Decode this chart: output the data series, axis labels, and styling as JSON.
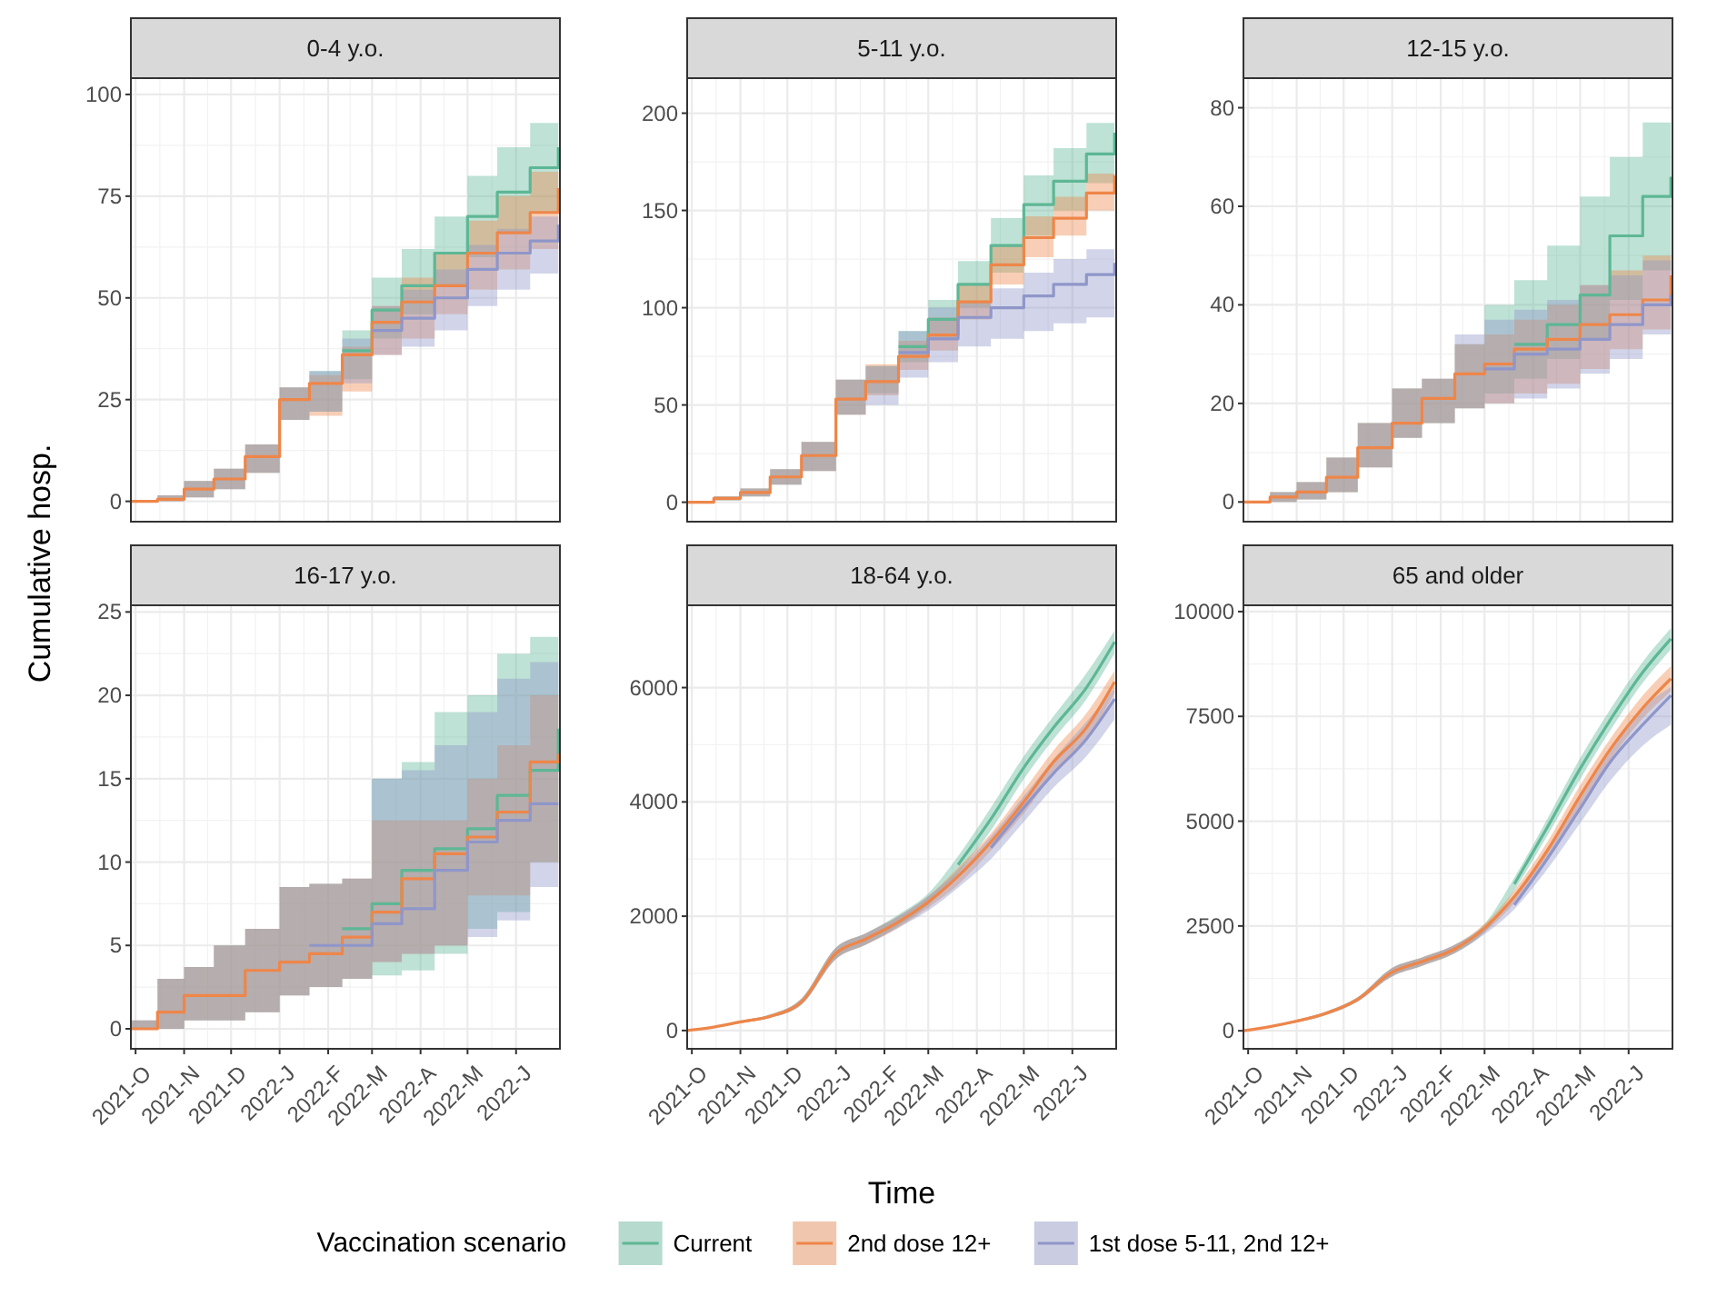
{
  "chart_data": [
    {
      "type": "step",
      "title": "0-4 y.o.",
      "ylabel": "Cumulative hosp.",
      "x": [
        "2021-09-28",
        "2021-10-15",
        "2021-11-01",
        "2021-11-20",
        "2021-12-10",
        "2022-01-01",
        "2022-01-20",
        "2022-02-10",
        "2022-03-01",
        "2022-03-20",
        "2022-04-10",
        "2022-05-01",
        "2022-05-20",
        "2022-06-10",
        "2022-06-28"
      ],
      "xlim": [
        "2021-09-28",
        "2022-06-29"
      ],
      "xticks": [
        {
          "value": "2021-10-01",
          "label": null
        },
        {
          "value": "2021-11-01",
          "label": null
        },
        {
          "value": "2021-12-01",
          "label": null
        },
        {
          "value": "2022-01-01",
          "label": null
        },
        {
          "value": "2022-02-01",
          "label": null
        },
        {
          "value": "2022-03-01",
          "label": null
        },
        {
          "value": "2022-04-01",
          "label": null
        },
        {
          "value": "2022-05-01",
          "label": null
        },
        {
          "value": "2022-06-01",
          "label": null
        }
      ],
      "tick_labels": "y",
      "ylim": [
        -5,
        104
      ],
      "yticks": [
        0,
        25,
        50,
        75,
        100
      ],
      "grid": true,
      "series": [
        {
          "color": "#5db795",
          "values": [
            null,
            null,
            null,
            null,
            null,
            null,
            null,
            37,
            47,
            53,
            61,
            70,
            76,
            82,
            87
          ],
          "lower": [
            0,
            0,
            1,
            3,
            7,
            20,
            22,
            30,
            40,
            46,
            53,
            60,
            66,
            71,
            76
          ],
          "upper": [
            0,
            1.5,
            5,
            8,
            14,
            28,
            32,
            42,
            55,
            62,
            70,
            80,
            87,
            93,
            98
          ]
        },
        {
          "color": "#ee8649",
          "values": [
            0,
            0.5,
            3,
            5.5,
            11,
            25,
            29,
            36,
            44,
            49,
            53,
            61,
            66,
            71,
            77
          ],
          "lower": [
            0,
            0,
            1,
            3,
            7,
            20,
            21,
            27,
            36,
            40,
            46,
            52,
            57,
            62,
            66
          ],
          "upper": [
            0,
            1.5,
            5,
            8,
            14,
            28,
            31,
            38,
            48,
            55,
            61,
            69,
            75,
            81,
            89
          ]
        },
        {
          "color": "#8f96c9",
          "values": [
            null,
            null,
            null,
            null,
            null,
            null,
            null,
            null,
            42,
            45,
            50,
            57,
            61,
            64,
            68
          ],
          "lower": [
            0,
            0,
            1,
            3,
            7,
            20,
            22,
            29,
            36,
            38,
            42,
            48,
            52,
            56,
            60
          ],
          "upper": [
            0,
            1.5,
            5,
            8,
            14,
            28,
            32,
            40,
            48,
            52,
            57,
            63,
            67,
            70,
            72
          ]
        }
      ]
    },
    {
      "type": "step",
      "title": "5-11 y.o.",
      "x": [
        "2021-09-28",
        "2021-10-15",
        "2021-11-01",
        "2021-11-20",
        "2021-12-10",
        "2022-01-01",
        "2022-01-20",
        "2022-02-10",
        "2022-03-01",
        "2022-03-20",
        "2022-04-10",
        "2022-05-01",
        "2022-05-20",
        "2022-06-10",
        "2022-06-28"
      ],
      "xlim": [
        "2021-09-28",
        "2022-06-29"
      ],
      "xticks": [
        {
          "value": "2021-10-01",
          "label": null
        },
        {
          "value": "2021-11-01",
          "label": null
        },
        {
          "value": "2021-12-01",
          "label": null
        },
        {
          "value": "2022-01-01",
          "label": null
        },
        {
          "value": "2022-02-01",
          "label": null
        },
        {
          "value": "2022-03-01",
          "label": null
        },
        {
          "value": "2022-04-01",
          "label": null
        },
        {
          "value": "2022-05-01",
          "label": null
        },
        {
          "value": "2022-06-01",
          "label": null
        }
      ],
      "tick_labels": "y",
      "ylim": [
        -10,
        218
      ],
      "yticks": [
        0,
        50,
        100,
        150,
        200
      ],
      "grid": true,
      "series": [
        {
          "color": "#5db795",
          "values": [
            null,
            null,
            null,
            null,
            null,
            null,
            null,
            80,
            94,
            112,
            132,
            153,
            165,
            179,
            190
          ],
          "lower": [
            0,
            1,
            3,
            9,
            16,
            45,
            56,
            72,
            84,
            100,
            118,
            137,
            150,
            164,
            176
          ],
          "upper": [
            0,
            3,
            7,
            17,
            31,
            63,
            70,
            88,
            104,
            124,
            146,
            168,
            182,
            195,
            206
          ]
        },
        {
          "color": "#ee8649",
          "values": [
            0,
            2,
            5,
            13,
            24,
            53,
            62,
            75,
            86,
            103,
            122,
            136,
            146,
            159,
            168
          ],
          "lower": [
            0,
            1,
            3,
            9,
            16,
            45,
            55,
            68,
            78,
            94,
            112,
            126,
            137,
            150,
            157
          ],
          "upper": [
            0,
            3,
            7,
            17,
            31,
            63,
            71,
            83,
            95,
            112,
            132,
            147,
            157,
            169,
            178
          ]
        },
        {
          "color": "#8f96c9",
          "values": [
            null,
            null,
            null,
            null,
            null,
            null,
            null,
            77,
            84,
            95,
            100,
            106,
            112,
            117,
            123
          ],
          "lower": [
            0,
            1,
            3,
            9,
            16,
            45,
            50,
            64,
            72,
            80,
            84,
            88,
            92,
            95,
            98
          ],
          "upper": [
            0,
            3,
            7,
            17,
            31,
            63,
            70,
            88,
            100,
            103,
            110,
            118,
            125,
            130,
            135
          ]
        }
      ]
    },
    {
      "type": "step",
      "title": "12-15 y.o.",
      "x": [
        "2021-09-28",
        "2021-10-15",
        "2021-11-01",
        "2021-11-20",
        "2021-12-10",
        "2022-01-01",
        "2022-01-20",
        "2022-02-10",
        "2022-03-01",
        "2022-03-20",
        "2022-04-10",
        "2022-05-01",
        "2022-05-20",
        "2022-06-10",
        "2022-06-28"
      ],
      "xlim": [
        "2021-09-28",
        "2022-06-29"
      ],
      "xticks": [
        {
          "value": "2021-10-01",
          "label": null
        },
        {
          "value": "2021-11-01",
          "label": null
        },
        {
          "value": "2021-12-01",
          "label": null
        },
        {
          "value": "2022-01-01",
          "label": null
        },
        {
          "value": "2022-02-01",
          "label": null
        },
        {
          "value": "2022-03-01",
          "label": null
        },
        {
          "value": "2022-04-01",
          "label": null
        },
        {
          "value": "2022-05-01",
          "label": null
        },
        {
          "value": "2022-06-01",
          "label": null
        }
      ],
      "tick_labels": "y",
      "ylim": [
        -4,
        86
      ],
      "yticks": [
        0,
        20,
        40,
        60,
        80
      ],
      "grid": true,
      "series": [
        {
          "color": "#5db795",
          "values": [
            null,
            null,
            null,
            null,
            null,
            null,
            null,
            null,
            null,
            32,
            36,
            42,
            54,
            62,
            66
          ],
          "lower": [
            0,
            0,
            0.5,
            2,
            7,
            13,
            16,
            19,
            22,
            25,
            29,
            33,
            41,
            47,
            52
          ],
          "upper": [
            0,
            2,
            4,
            9,
            16,
            23,
            25,
            32,
            40,
            45,
            52,
            62,
            70,
            77,
            81
          ]
        },
        {
          "color": "#ee8649",
          "values": [
            0,
            1,
            2,
            5,
            11,
            16,
            21,
            26,
            28,
            31,
            33,
            36,
            38,
            41,
            46
          ],
          "lower": [
            0,
            0,
            0.5,
            2,
            7,
            13,
            16,
            19,
            20,
            22,
            24,
            27,
            31,
            35,
            40
          ],
          "upper": [
            0,
            2,
            4,
            9,
            16,
            23,
            25,
            32,
            34,
            37,
            40,
            44,
            47,
            50,
            52
          ]
        },
        {
          "color": "#8f96c9",
          "values": [
            null,
            null,
            null,
            null,
            null,
            null,
            null,
            null,
            27,
            30,
            31,
            33,
            36,
            40,
            42
          ],
          "lower": [
            0,
            0,
            0.5,
            2,
            7,
            13,
            16,
            19,
            20,
            21,
            23,
            26,
            29,
            34,
            37
          ],
          "upper": [
            0,
            2,
            4,
            9,
            16,
            23,
            25,
            34,
            37,
            39,
            41,
            44,
            46,
            49,
            51
          ]
        }
      ]
    },
    {
      "type": "step",
      "title": "16-17 y.o.",
      "x": [
        "2021-09-28",
        "2021-10-15",
        "2021-11-01",
        "2021-11-20",
        "2021-12-10",
        "2022-01-01",
        "2022-01-20",
        "2022-02-10",
        "2022-03-01",
        "2022-03-20",
        "2022-04-10",
        "2022-05-01",
        "2022-05-20",
        "2022-06-10",
        "2022-06-28"
      ],
      "xlim": [
        "2021-09-28",
        "2022-06-29"
      ],
      "xticks": [
        {
          "value": "2021-10-01",
          "label": "2021-O"
        },
        {
          "value": "2021-11-01",
          "label": "2021-N"
        },
        {
          "value": "2021-12-01",
          "label": "2021-D"
        },
        {
          "value": "2022-01-01",
          "label": "2022-J"
        },
        {
          "value": "2022-02-01",
          "label": "2022-F"
        },
        {
          "value": "2022-03-01",
          "label": "2022-M"
        },
        {
          "value": "2022-04-01",
          "label": "2022-A"
        },
        {
          "value": "2022-05-01",
          "label": "2022-M"
        },
        {
          "value": "2022-06-01",
          "label": "2022-J"
        }
      ],
      "ylim": [
        -1.2,
        25.4
      ],
      "yticks": [
        0,
        5,
        10,
        15,
        20,
        25
      ],
      "grid": true,
      "series": [
        {
          "color": "#5db795",
          "values": [
            null,
            null,
            null,
            null,
            null,
            null,
            null,
            6,
            7.5,
            9.5,
            10.8,
            12,
            14,
            15.5,
            18
          ],
          "lower": [
            0,
            0,
            0.5,
            0.5,
            1,
            2,
            2.5,
            3,
            3.2,
            3.5,
            4.5,
            6,
            7,
            10,
            11
          ],
          "upper": [
            0.5,
            3,
            3.7,
            5,
            6,
            8.5,
            8.7,
            9,
            15,
            16,
            19,
            20,
            22.5,
            23.5,
            24.2
          ]
        },
        {
          "color": "#ee8649",
          "values": [
            0,
            1,
            2,
            2,
            3.5,
            4,
            4.5,
            5.5,
            7,
            9,
            10.5,
            11.5,
            13,
            16,
            16.5
          ],
          "lower": [
            0,
            0,
            0.5,
            0.5,
            1,
            2,
            2.5,
            3,
            4,
            4.5,
            5,
            8,
            8,
            10,
            11
          ],
          "upper": [
            0.5,
            3,
            3.7,
            5,
            6,
            8.5,
            8.7,
            9,
            12.5,
            12.5,
            12.5,
            15,
            17,
            20,
            22.3
          ]
        },
        {
          "color": "#8f96c9",
          "values": [
            null,
            null,
            null,
            null,
            null,
            null,
            5,
            5,
            6.3,
            7.2,
            9.5,
            11.2,
            12.5,
            13.5,
            13.5
          ],
          "lower": [
            0,
            0,
            0.5,
            0.5,
            1,
            2,
            2.5,
            3,
            4,
            4.5,
            5,
            5.5,
            6.5,
            8.5,
            9.3
          ],
          "upper": [
            0.5,
            3,
            3.7,
            5,
            6,
            8.5,
            8.7,
            9,
            15,
            15.5,
            17,
            19,
            21,
            22,
            23
          ]
        }
      ]
    },
    {
      "type": "line",
      "title": "18-64 y.o.",
      "xlabel": "Time",
      "legend": "bottom",
      "legend_title": "Vaccination scenario",
      "x": [
        "2021-09-28",
        "2021-10-15",
        "2021-11-01",
        "2021-11-20",
        "2021-12-10",
        "2022-01-01",
        "2022-01-20",
        "2022-02-10",
        "2022-03-01",
        "2022-03-20",
        "2022-04-10",
        "2022-05-01",
        "2022-05-20",
        "2022-06-10",
        "2022-06-28"
      ],
      "xlim": [
        "2021-09-28",
        "2022-06-29"
      ],
      "xticks": [
        {
          "value": "2021-10-01",
          "label": "2021-O"
        },
        {
          "value": "2021-11-01",
          "label": "2021-N"
        },
        {
          "value": "2021-12-01",
          "label": "2021-D"
        },
        {
          "value": "2022-01-01",
          "label": "2022-J"
        },
        {
          "value": "2022-02-01",
          "label": "2022-F"
        },
        {
          "value": "2022-03-01",
          "label": "2022-M"
        },
        {
          "value": "2022-04-01",
          "label": "2022-A"
        },
        {
          "value": "2022-05-01",
          "label": "2022-M"
        },
        {
          "value": "2022-06-01",
          "label": "2022-J"
        }
      ],
      "ylim": [
        -320,
        7440
      ],
      "yticks": [
        0,
        2000,
        4000,
        6000
      ],
      "grid": true,
      "series": [
        {
          "name": "Current",
          "color": "#5db795",
          "values": [
            null,
            null,
            null,
            null,
            null,
            null,
            null,
            null,
            null,
            2900,
            3700,
            4600,
            5300,
            6000,
            6800
          ],
          "lower": [
            0,
            50,
            130,
            220,
            450,
            1250,
            1500,
            1830,
            2200,
            2750,
            3500,
            4400,
            5100,
            5800,
            6600
          ],
          "upper": [
            0,
            70,
            170,
            280,
            560,
            1450,
            1700,
            2030,
            2400,
            3050,
            3900,
            4800,
            5500,
            6250,
            7000
          ]
        },
        {
          "name": "2nd dose 12+",
          "color": "#ee8649",
          "values": [
            0,
            60,
            150,
            250,
            500,
            1350,
            1600,
            1900,
            2250,
            2700,
            3300,
            4000,
            4700,
            5300,
            6100
          ],
          "lower": [
            0,
            50,
            130,
            220,
            450,
            1250,
            1500,
            1800,
            2150,
            2550,
            3150,
            3800,
            4500,
            5100,
            5900
          ],
          "upper": [
            0,
            70,
            170,
            280,
            560,
            1450,
            1700,
            2000,
            2350,
            2850,
            3450,
            4200,
            4900,
            5550,
            6300
          ]
        },
        {
          "name": "1st dose 5-11, 2nd 12+",
          "color": "#8f96c9",
          "values": [
            null,
            null,
            null,
            null,
            null,
            null,
            null,
            null,
            null,
            null,
            3200,
            3900,
            4500,
            5100,
            5800
          ],
          "lower": [
            0,
            50,
            130,
            220,
            450,
            1250,
            1500,
            1800,
            2100,
            2500,
            3000,
            3650,
            4250,
            4800,
            5450
          ],
          "upper": [
            0,
            70,
            170,
            280,
            560,
            1450,
            1700,
            2000,
            2350,
            2800,
            3400,
            4100,
            4750,
            5400,
            6000
          ]
        }
      ]
    },
    {
      "type": "line",
      "title": "65 and older",
      "x": [
        "2021-09-28",
        "2021-10-15",
        "2021-11-01",
        "2021-11-20",
        "2021-12-10",
        "2022-01-01",
        "2022-01-20",
        "2022-02-10",
        "2022-03-01",
        "2022-03-20",
        "2022-04-10",
        "2022-05-01",
        "2022-05-20",
        "2022-06-10",
        "2022-06-28"
      ],
      "xlim": [
        "2021-09-28",
        "2022-06-29"
      ],
      "xticks": [
        {
          "value": "2021-10-01",
          "label": "2021-O"
        },
        {
          "value": "2021-11-01",
          "label": "2021-N"
        },
        {
          "value": "2021-12-01",
          "label": "2021-D"
        },
        {
          "value": "2022-01-01",
          "label": "2022-J"
        },
        {
          "value": "2022-02-01",
          "label": "2022-F"
        },
        {
          "value": "2022-03-01",
          "label": "2022-M"
        },
        {
          "value": "2022-04-01",
          "label": "2022-A"
        },
        {
          "value": "2022-05-01",
          "label": "2022-M"
        },
        {
          "value": "2022-06-01",
          "label": "2022-J"
        }
      ],
      "ylim": [
        -430,
        10150
      ],
      "yticks": [
        0,
        2500,
        5000,
        7500,
        10000
      ],
      "grid": true,
      "series": [
        {
          "color": "#5db795",
          "values": [
            null,
            null,
            null,
            null,
            null,
            null,
            null,
            null,
            null,
            3500,
            4850,
            6250,
            7400,
            8550,
            9350
          ],
          "lower": [
            0,
            80,
            200,
            380,
            700,
            1300,
            1550,
            1850,
            2350,
            3350,
            4650,
            6000,
            7150,
            8300,
            9100
          ],
          "upper": [
            0,
            120,
            260,
            460,
            800,
            1500,
            1750,
            2050,
            2550,
            3650,
            5050,
            6500,
            7650,
            8800,
            9600
          ]
        },
        {
          "color": "#ee8649",
          "values": [
            0,
            100,
            230,
            420,
            750,
            1400,
            1650,
            1950,
            2450,
            3200,
            4300,
            5600,
            6700,
            7700,
            8400
          ],
          "lower": [
            0,
            80,
            200,
            380,
            700,
            1300,
            1550,
            1850,
            2350,
            3050,
            4100,
            5350,
            6450,
            7450,
            8100
          ],
          "upper": [
            0,
            120,
            260,
            460,
            800,
            1500,
            1750,
            2050,
            2550,
            3350,
            4500,
            5850,
            6950,
            8000,
            8700
          ]
        },
        {
          "color": "#8f96c9",
          "values": [
            null,
            null,
            null,
            null,
            null,
            null,
            null,
            null,
            null,
            3000,
            4100,
            5300,
            6400,
            7300,
            8000
          ],
          "lower": [
            0,
            80,
            200,
            380,
            700,
            1300,
            1550,
            1850,
            2300,
            2900,
            3850,
            4950,
            5950,
            6800,
            7300
          ],
          "upper": [
            0,
            120,
            260,
            460,
            800,
            1500,
            1750,
            2050,
            2500,
            3250,
            4300,
            5550,
            6700,
            7700,
            8200
          ]
        }
      ]
    }
  ]
}
